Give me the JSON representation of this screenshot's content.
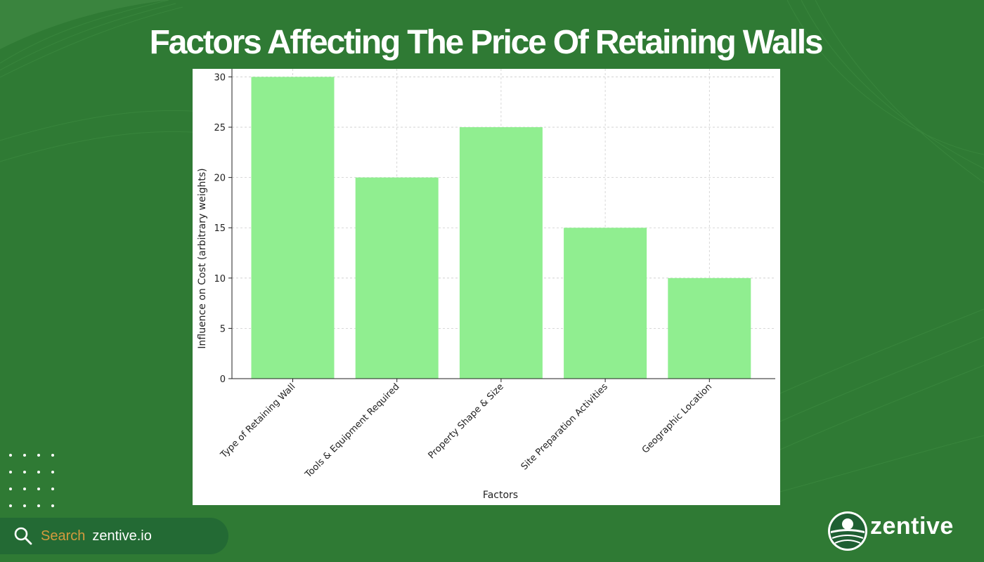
{
  "page": {
    "title": "Factors Affecting The Price Of Retaining Walls"
  },
  "colors": {
    "background": "#2f7a34",
    "bar": "#90ee90",
    "search_label": "#d49a3e",
    "pill": "#236a34"
  },
  "footer": {
    "search_label": "Search",
    "search_domain": "zentive.io",
    "brand_name": "zentive",
    "search_icon": "search-icon",
    "brand_icon": "zentive-logo-icon"
  },
  "chart_data": {
    "type": "bar",
    "categories": [
      "Type of Retaining Wall",
      "Tools & Equipment Required",
      "Property Shape & Size",
      "Site Preparation Activities",
      "Geographic Location"
    ],
    "values": [
      30,
      20,
      25,
      15,
      10
    ],
    "title": "",
    "xlabel": "Factors",
    "ylabel": "Influence on Cost (arbitrary weights)",
    "ylim": [
      0,
      30.8
    ],
    "yticks": [
      0,
      5,
      10,
      15,
      20,
      25,
      30
    ],
    "grid": true,
    "legend": "none"
  }
}
